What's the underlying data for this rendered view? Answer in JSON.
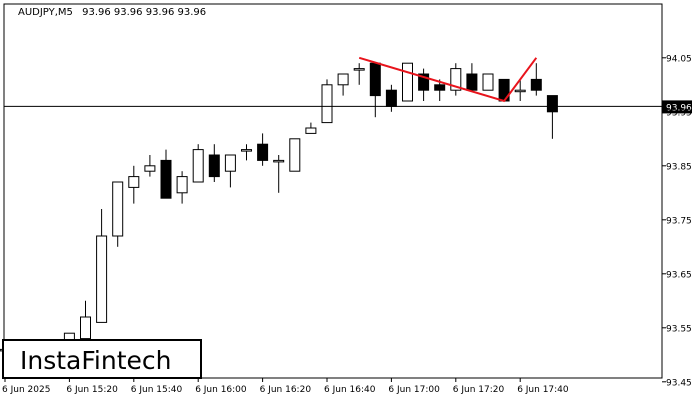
{
  "header": {
    "symbol": "AUDJPY,M5",
    "ohlc": "93.96 93.96 93.96 93.96"
  },
  "price_marker": {
    "label": "93.96",
    "value": 93.96
  },
  "logo": {
    "text": "InstaFintech"
  },
  "colors": {
    "background": "#ffffff",
    "candle_outline": "#000000",
    "bull_fill": "#ffffff",
    "bear_fill": "#000000",
    "pattern_line": "#e8141c",
    "marker_bg": "#000000",
    "marker_text": "#ffffff"
  },
  "chart_data": {
    "type": "candlestick",
    "title": "AUDJPY,M5",
    "y_ticks": [
      "94.05",
      "93.95",
      "93.85",
      "93.75",
      "93.65",
      "93.55",
      "93.45"
    ],
    "y_tick_values": [
      94.05,
      93.95,
      93.85,
      93.75,
      93.65,
      93.55,
      93.45
    ],
    "ylim": [
      93.4,
      94.1
    ],
    "x_tick_labels": [
      "6 Jun 2025",
      "6 Jun 15:20",
      "6 Jun 15:40",
      "6 Jun 16:00",
      "6 Jun 16:20",
      "6 Jun 16:40",
      "6 Jun 17:00",
      "6 Jun 17:20",
      "6 Jun 17:40"
    ],
    "x_tick_candle_index": [
      0,
      4,
      8,
      12,
      16,
      20,
      24,
      28,
      32
    ],
    "grid": false,
    "candles": [
      {
        "o": 93.51,
        "h": 93.52,
        "l": 93.5,
        "c": 93.51
      },
      {
        "o": 93.51,
        "h": 93.52,
        "l": 93.5,
        "c": 93.51
      },
      {
        "o": 93.51,
        "h": 93.52,
        "l": 93.5,
        "c": 93.5
      },
      {
        "o": 93.5,
        "h": 93.51,
        "l": 93.49,
        "c": 93.49
      },
      {
        "o": 93.5,
        "h": 93.54,
        "l": 93.5,
        "c": 93.54
      },
      {
        "o": 93.53,
        "h": 93.6,
        "l": 93.53,
        "c": 93.57
      },
      {
        "o": 93.56,
        "h": 93.77,
        "l": 93.56,
        "c": 93.72
      },
      {
        "o": 93.72,
        "h": 93.82,
        "l": 93.7,
        "c": 93.82
      },
      {
        "o": 93.81,
        "h": 93.85,
        "l": 93.78,
        "c": 93.83
      },
      {
        "o": 93.84,
        "h": 93.87,
        "l": 93.83,
        "c": 93.85
      },
      {
        "o": 93.86,
        "h": 93.88,
        "l": 93.79,
        "c": 93.79
      },
      {
        "o": 93.8,
        "h": 93.84,
        "l": 93.78,
        "c": 93.83
      },
      {
        "o": 93.82,
        "h": 93.89,
        "l": 93.82,
        "c": 93.88
      },
      {
        "o": 93.87,
        "h": 93.89,
        "l": 93.82,
        "c": 93.83
      },
      {
        "o": 93.84,
        "h": 93.87,
        "l": 93.81,
        "c": 93.87
      },
      {
        "o": 93.88,
        "h": 93.89,
        "l": 93.86,
        "c": 93.88
      },
      {
        "o": 93.89,
        "h": 93.91,
        "l": 93.85,
        "c": 93.86
      },
      {
        "o": 93.86,
        "h": 93.87,
        "l": 93.8,
        "c": 93.86
      },
      {
        "o": 93.84,
        "h": 93.9,
        "l": 93.84,
        "c": 93.9
      },
      {
        "o": 93.91,
        "h": 93.93,
        "l": 93.91,
        "c": 93.92
      },
      {
        "o": 93.93,
        "h": 94.01,
        "l": 93.93,
        "c": 94.0
      },
      {
        "o": 94.0,
        "h": 94.02,
        "l": 93.98,
        "c": 94.02
      },
      {
        "o": 94.03,
        "h": 94.04,
        "l": 94.0,
        "c": 94.03
      },
      {
        "o": 94.04,
        "h": 94.04,
        "l": 93.94,
        "c": 93.98
      },
      {
        "o": 93.99,
        "h": 94.0,
        "l": 93.95,
        "c": 93.96
      },
      {
        "o": 93.97,
        "h": 94.04,
        "l": 93.97,
        "c": 94.04
      },
      {
        "o": 94.02,
        "h": 94.03,
        "l": 93.97,
        "c": 93.99
      },
      {
        "o": 94.0,
        "h": 94.01,
        "l": 93.97,
        "c": 93.99
      },
      {
        "o": 93.99,
        "h": 94.04,
        "l": 93.98,
        "c": 94.03
      },
      {
        "o": 94.02,
        "h": 94.04,
        "l": 93.99,
        "c": 93.99
      },
      {
        "o": 93.99,
        "h": 94.02,
        "l": 93.99,
        "c": 94.02
      },
      {
        "o": 94.01,
        "h": 94.01,
        "l": 93.97,
        "c": 93.97
      },
      {
        "o": 93.99,
        "h": 94.01,
        "l": 93.97,
        "c": 93.99
      },
      {
        "o": 94.01,
        "h": 94.04,
        "l": 93.98,
        "c": 93.99
      },
      {
        "o": 93.98,
        "h": 93.98,
        "l": 93.9,
        "c": 93.95
      }
    ],
    "pattern": {
      "type": "double-top",
      "points": [
        [
          22,
          94.05
        ],
        [
          31,
          93.97
        ],
        [
          33,
          94.05
        ]
      ]
    }
  }
}
